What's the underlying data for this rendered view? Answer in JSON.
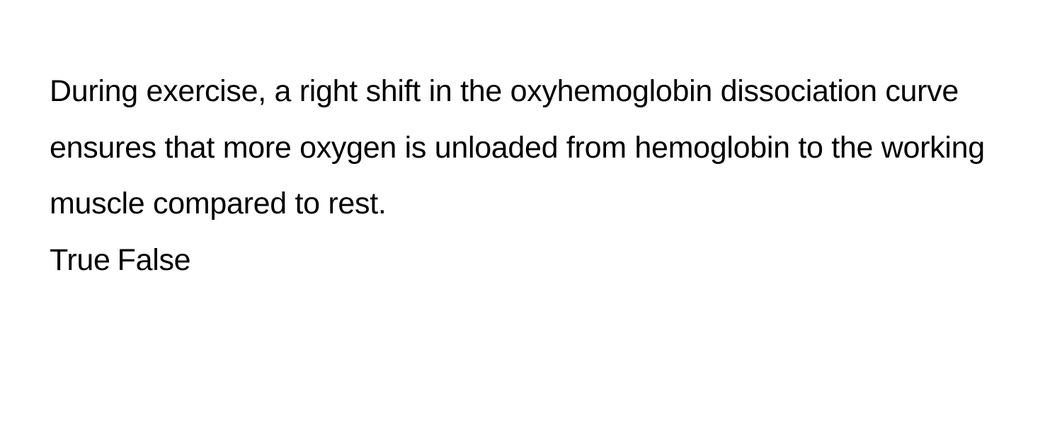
{
  "question": {
    "text": "During exercise, a right shift in the oxyhemoglobin dissociation curve ensures that more oxygen is unloaded from hemoglobin to the working muscle compared to rest.",
    "options": {
      "true_label": "True",
      "false_label": "False"
    }
  },
  "styling": {
    "background_color": "#ffffff",
    "text_color": "#000000",
    "font_size": 43,
    "line_height": 1.85,
    "font_family": "-apple-system, BlinkMacSystemFont, Segoe UI, Helvetica, Arial, sans-serif"
  }
}
